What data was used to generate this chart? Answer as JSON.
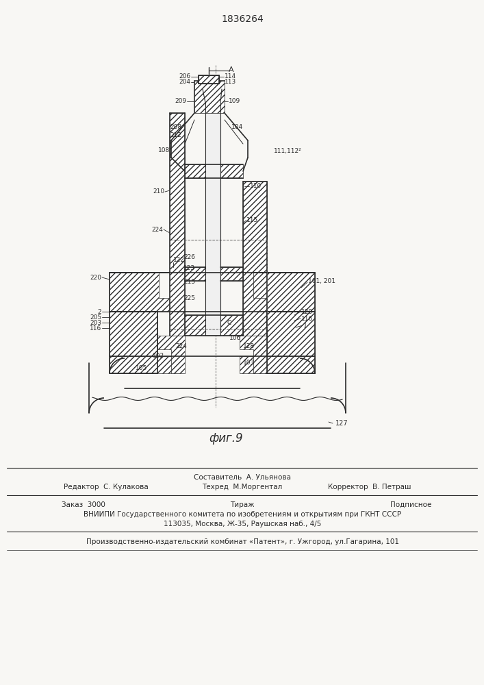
{
  "patent_number": "1836264",
  "fig_label": "фиг.9",
  "bg_color": "#f8f7f4",
  "line_color": "#2a2a2a",
  "footer": {
    "line1_left": "Редактор  С. Кулакова",
    "line1_center1": "Составитель  А. Ульянова",
    "line1_center2": "Техред  М.Моргентал",
    "line1_right": "Корректор  В. Петраш",
    "line2_a": "Заказ  3000",
    "line2_b": "Тираж",
    "line2_c": "Подписное",
    "line3": "ВНИИПИ Государственного комитета по изобретениям и открытиям при ГКНТ СССР",
    "line4": "113035, Москва, Ж-35, Раушская наб., 4/5",
    "line5": "Производственно-издательский комбинат «Патент», г. Ужгород, ул.Гагарина, 101"
  }
}
